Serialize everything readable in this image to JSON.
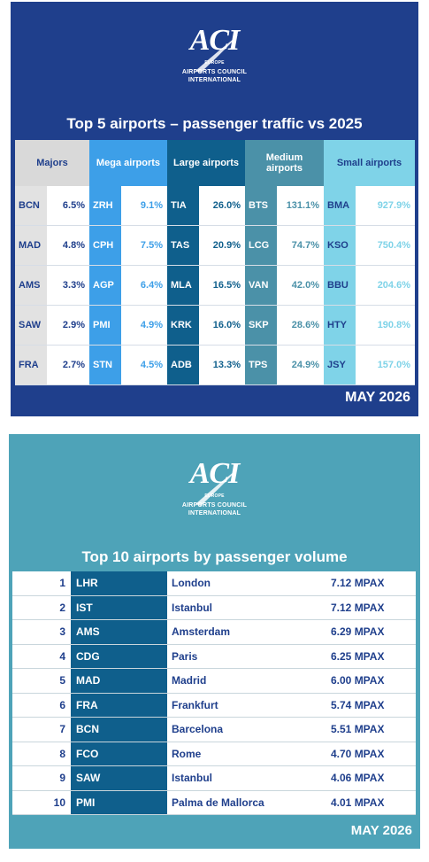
{
  "top_panel": {
    "logo": {
      "mark": "ACI",
      "region": "EUROPE",
      "line1": "AIRPORTS COUNCIL",
      "line2": "INTERNATIONAL"
    },
    "title": "Top 5 airports – passenger traffic vs 2025",
    "groups": [
      {
        "header": "Majors",
        "rows": [
          [
            "BCN",
            "6.5%"
          ],
          [
            "MAD",
            "4.8%"
          ],
          [
            "AMS",
            "3.3%"
          ],
          [
            "SAW",
            "2.9%"
          ],
          [
            "FRA",
            "2.7%"
          ]
        ]
      },
      {
        "header": "Mega airports",
        "rows": [
          [
            "ZRH",
            "9.1%"
          ],
          [
            "CPH",
            "7.5%"
          ],
          [
            "AGP",
            "6.4%"
          ],
          [
            "PMI",
            "4.9%"
          ],
          [
            "STN",
            "4.5%"
          ]
        ]
      },
      {
        "header": "Large airports",
        "rows": [
          [
            "TIA",
            "26.0%"
          ],
          [
            "TAS",
            "20.9%"
          ],
          [
            "MLA",
            "16.5%"
          ],
          [
            "KRK",
            "16.0%"
          ],
          [
            "ADB",
            "13.3%"
          ]
        ]
      },
      {
        "header": "Medium airports",
        "rows": [
          [
            "BTS",
            "131.1%"
          ],
          [
            "LCG",
            "74.7%"
          ],
          [
            "VAN",
            "42.0%"
          ],
          [
            "SKP",
            "28.6%"
          ],
          [
            "TPS",
            "24.9%"
          ]
        ]
      },
      {
        "header": "Small airports",
        "rows": [
          [
            "BMA",
            "927.9%"
          ],
          [
            "KSO",
            "750.4%"
          ],
          [
            "BBU",
            "204.6%"
          ],
          [
            "HTY",
            "190.8%"
          ],
          [
            "JSY",
            "157.0%"
          ]
        ]
      }
    ],
    "footer": "MAY 2026"
  },
  "bottom_panel": {
    "logo": {
      "mark": "ACI",
      "region": "EUROPE",
      "line1": "AIRPORTS COUNCIL",
      "line2": "INTERNATIONAL"
    },
    "title": "Top 10 airports by passenger volume",
    "table": {
      "rows": [
        [
          "1",
          "LHR",
          "London",
          "7.12 MPAX"
        ],
        [
          "2",
          "IST",
          "Istanbul",
          "7.12 MPAX"
        ],
        [
          "3",
          "AMS",
          "Amsterdam",
          "6.29 MPAX"
        ],
        [
          "4",
          "CDG",
          "Paris",
          "6.25 MPAX"
        ],
        [
          "5",
          "MAD",
          "Madrid",
          "6.00 MPAX"
        ],
        [
          "6",
          "FRA",
          "Frankfurt",
          "5.74 MPAX"
        ],
        [
          "7",
          "BCN",
          "Barcelona",
          "5.51 MPAX"
        ],
        [
          "8",
          "FCO",
          "Rome",
          "4.70 MPAX"
        ],
        [
          "9",
          "SAW",
          "Istanbul",
          "4.06 MPAX"
        ],
        [
          "10",
          "PMI",
          "Palma de Mallorca",
          "4.01 MPAX"
        ]
      ]
    },
    "footer": "MAY 2026"
  }
}
